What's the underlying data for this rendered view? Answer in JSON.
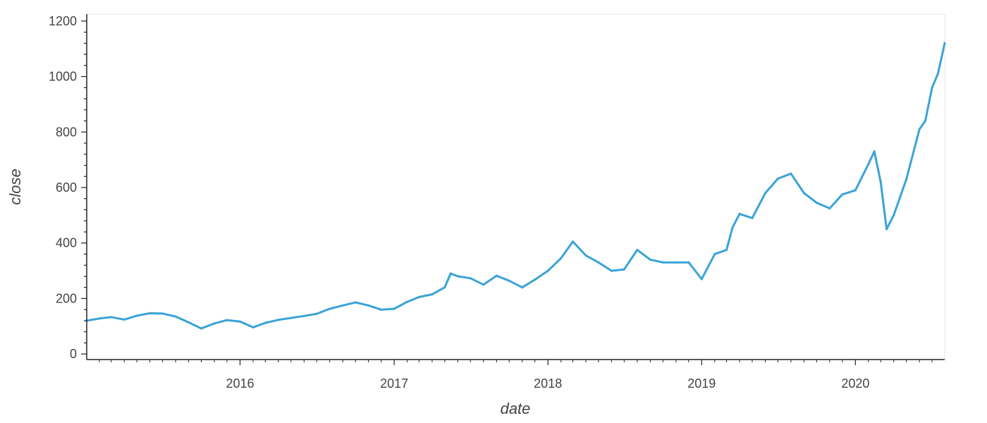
{
  "chart_data": {
    "type": "line",
    "title": "",
    "xlabel": "date",
    "ylabel": "close",
    "x_axis_type": "date",
    "xlim": [
      "2015-01-02",
      "2020-07-31"
    ],
    "ylim": [
      -20,
      1225
    ],
    "x_ticks": [
      {
        "label": "2016",
        "value": "2016-01-01"
      },
      {
        "label": "2017",
        "value": "2017-01-01"
      },
      {
        "label": "2018",
        "value": "2018-01-01"
      },
      {
        "label": "2019",
        "value": "2019-01-01"
      },
      {
        "label": "2020",
        "value": "2020-01-01"
      }
    ],
    "y_ticks": [
      0,
      200,
      400,
      600,
      800,
      1000,
      1200
    ],
    "grid": false,
    "series": [
      {
        "color": "#3ba3d8",
        "points": [
          [
            "2015-01-02",
            120
          ],
          [
            "2015-02-01",
            128
          ],
          [
            "2015-03-01",
            133
          ],
          [
            "2015-04-01",
            124
          ],
          [
            "2015-05-01",
            138
          ],
          [
            "2015-06-01",
            147
          ],
          [
            "2015-07-01",
            146
          ],
          [
            "2015-08-01",
            135
          ],
          [
            "2015-09-01",
            114
          ],
          [
            "2015-10-01",
            92
          ],
          [
            "2015-11-01",
            110
          ],
          [
            "2015-12-01",
            122
          ],
          [
            "2016-01-01",
            117
          ],
          [
            "2016-02-01",
            96
          ],
          [
            "2016-03-01",
            112
          ],
          [
            "2016-04-01",
            123
          ],
          [
            "2016-05-01",
            130
          ],
          [
            "2016-06-01",
            137
          ],
          [
            "2016-07-01",
            145
          ],
          [
            "2016-08-01",
            163
          ],
          [
            "2016-09-01",
            175
          ],
          [
            "2016-10-01",
            186
          ],
          [
            "2016-11-01",
            175
          ],
          [
            "2016-12-01",
            160
          ],
          [
            "2017-01-01",
            163
          ],
          [
            "2017-02-01",
            188
          ],
          [
            "2017-03-01",
            205
          ],
          [
            "2017-04-01",
            215
          ],
          [
            "2017-05-01",
            240
          ],
          [
            "2017-05-15",
            290
          ],
          [
            "2017-06-01",
            280
          ],
          [
            "2017-07-01",
            273
          ],
          [
            "2017-08-01",
            250
          ],
          [
            "2017-09-01",
            282
          ],
          [
            "2017-10-01",
            264
          ],
          [
            "2017-11-01",
            240
          ],
          [
            "2017-12-01",
            268
          ],
          [
            "2018-01-01",
            300
          ],
          [
            "2018-02-01",
            345
          ],
          [
            "2018-03-01",
            405
          ],
          [
            "2018-04-01",
            355
          ],
          [
            "2018-05-01",
            330
          ],
          [
            "2018-06-01",
            300
          ],
          [
            "2018-07-01",
            305
          ],
          [
            "2018-08-01",
            375
          ],
          [
            "2018-09-01",
            340
          ],
          [
            "2018-10-01",
            330
          ],
          [
            "2018-11-01",
            330
          ],
          [
            "2018-12-01",
            330
          ],
          [
            "2019-01-01",
            270
          ],
          [
            "2019-02-01",
            360
          ],
          [
            "2019-03-01",
            375
          ],
          [
            "2019-03-15",
            455
          ],
          [
            "2019-04-01",
            505
          ],
          [
            "2019-05-01",
            490
          ],
          [
            "2019-06-01",
            580
          ],
          [
            "2019-07-01",
            632
          ],
          [
            "2019-08-01",
            650
          ],
          [
            "2019-09-01",
            580
          ],
          [
            "2019-10-01",
            545
          ],
          [
            "2019-11-01",
            525
          ],
          [
            "2019-12-01",
            575
          ],
          [
            "2020-01-01",
            590
          ],
          [
            "2020-02-01",
            685
          ],
          [
            "2020-02-15",
            730
          ],
          [
            "2020-03-01",
            620
          ],
          [
            "2020-03-15",
            450
          ],
          [
            "2020-04-01",
            500
          ],
          [
            "2020-05-01",
            630
          ],
          [
            "2020-06-01",
            810
          ],
          [
            "2020-06-15",
            840
          ],
          [
            "2020-07-01",
            960
          ],
          [
            "2020-07-15",
            1010
          ],
          [
            "2020-07-31",
            1120
          ]
        ]
      }
    ]
  }
}
